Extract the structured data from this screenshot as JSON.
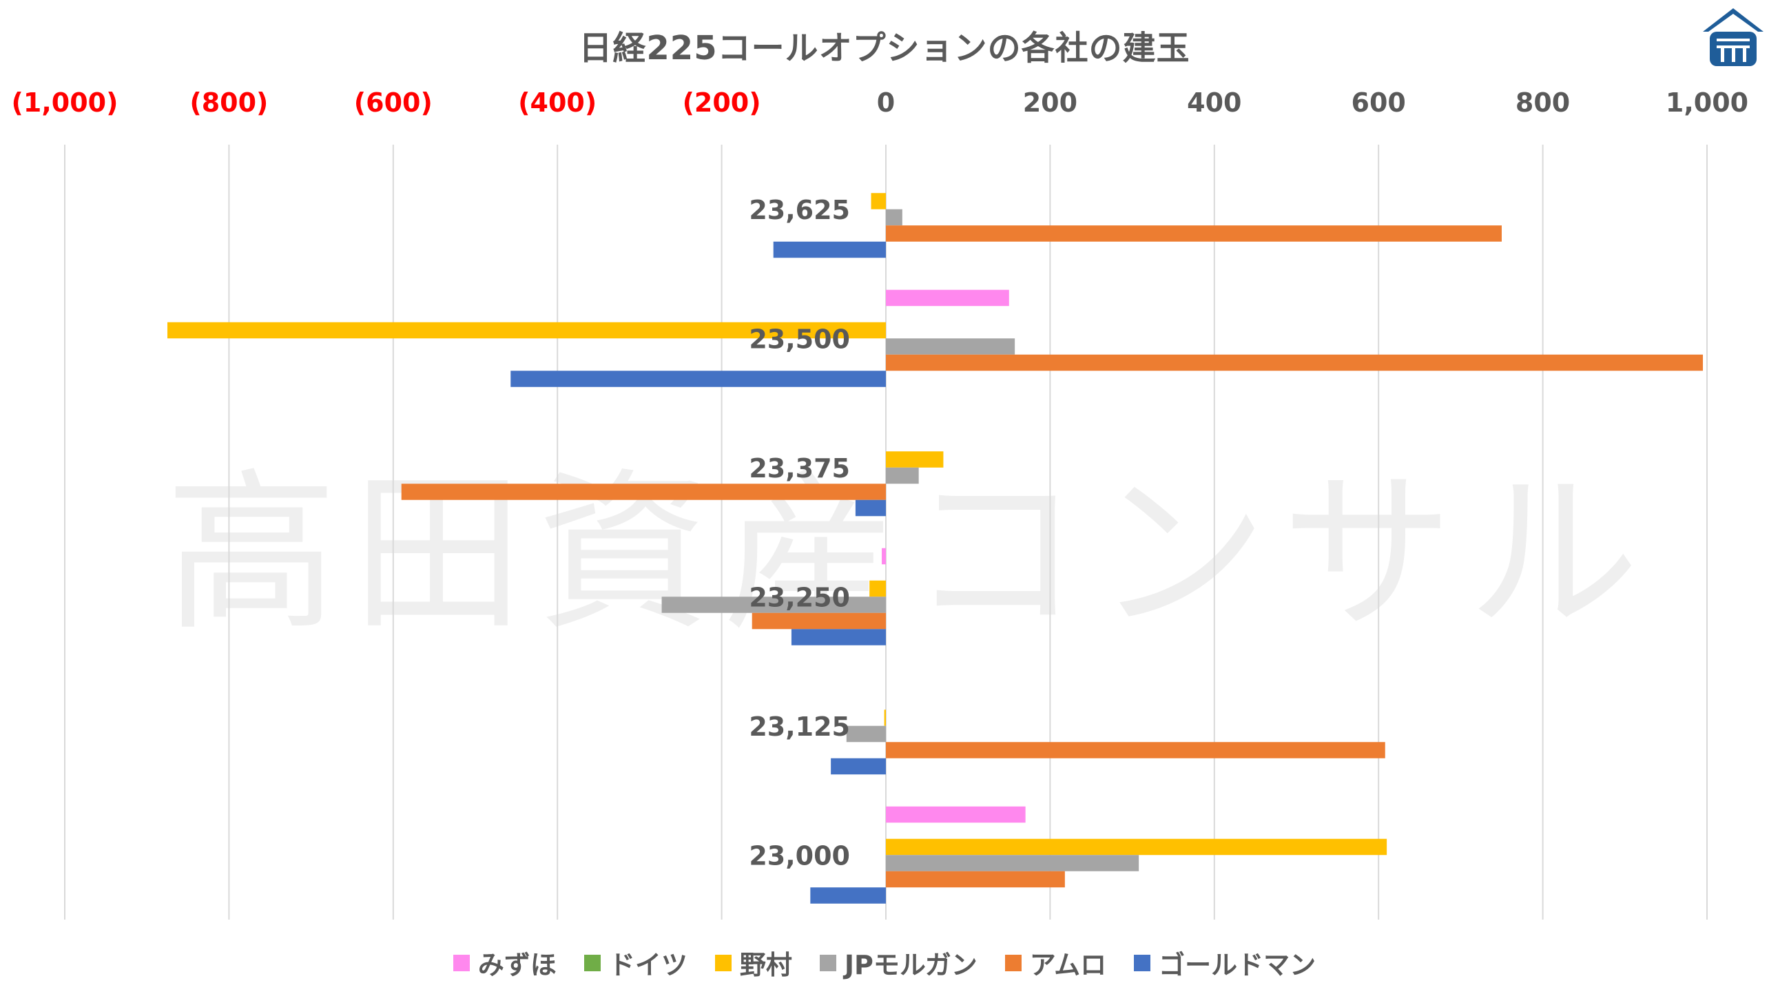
{
  "chart_data": {
    "type": "bar",
    "orientation": "horizontal",
    "title": "日経225コールオプションの各社の建玉",
    "categories": [
      "23,625",
      "23,500",
      "23,375",
      "23,250",
      "23,125",
      "23,000"
    ],
    "x_ticks": [
      "(1,000)",
      "(800)",
      "(600)",
      "(400)",
      "(200)",
      "0",
      "200",
      "400",
      "600",
      "800",
      "1,000"
    ],
    "x_tick_values": [
      -1000,
      -800,
      -600,
      -400,
      -200,
      0,
      200,
      400,
      600,
      800,
      1000
    ],
    "negative_tick_color": "#ff0000",
    "xlim": [
      -1000,
      1000
    ],
    "grid": true,
    "legend_position": "bottom",
    "series": [
      {
        "name": "みずほ",
        "color": "#ff88ee",
        "values": [
          0,
          150,
          0,
          -5,
          0,
          170
        ]
      },
      {
        "name": "ドイツ",
        "color": "#70ad47",
        "values": [
          0,
          0,
          0,
          0,
          0,
          0
        ]
      },
      {
        "name": "野村",
        "color": "#ffc000",
        "values": [
          -18,
          -875,
          70,
          -20,
          -2,
          610
        ]
      },
      {
        "name": "JPモルガン",
        "color": "#a5a5a5",
        "values": [
          20,
          157,
          40,
          -273,
          -48,
          308
        ]
      },
      {
        "name": "アムロ",
        "color": "#ed7d31",
        "values": [
          750,
          995,
          -590,
          -163,
          608,
          218
        ]
      },
      {
        "name": "ゴールドマン",
        "color": "#4472c4",
        "values": [
          -137,
          -457,
          -37,
          -115,
          -67,
          -92
        ]
      }
    ]
  },
  "watermark": "高田資産コンサル"
}
